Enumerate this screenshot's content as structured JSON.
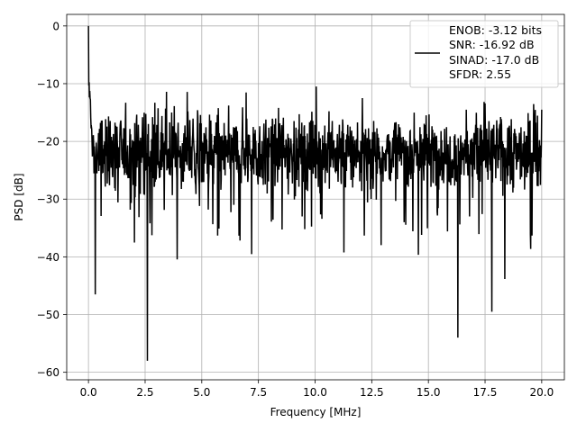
{
  "chart_data": {
    "type": "line",
    "title": "",
    "xlabel": "Frequency [MHz]",
    "ylabel": "PSD [dB]",
    "xlim": [
      -0.96,
      21.0
    ],
    "ylim": [
      -61.3,
      2.0
    ],
    "xticks": [
      0.0,
      2.5,
      5.0,
      7.5,
      10.0,
      12.5,
      15.0,
      17.5,
      20.0
    ],
    "xtick_labels": [
      "0.0",
      "2.5",
      "5.0",
      "7.5",
      "10.0",
      "12.5",
      "15.0",
      "17.5",
      "20.0"
    ],
    "yticks": [
      0,
      -10,
      -20,
      -30,
      -40,
      -50,
      -60
    ],
    "ytick_labels": [
      "0",
      "−10",
      "−20",
      "−30",
      "−40",
      "−50",
      "−60"
    ],
    "grid": true,
    "legend_position": "top-right",
    "series": [
      {
        "name": "ENOB: -3.12 bits\nSNR: -16.92 dB\nSINAD: -17.0 dB\nSFDR: 2.55",
        "legend_lines": [
          "ENOB: -3.12 bits",
          "SNR: -16.92 dB",
          "SINAD: -17.0 dB",
          "SFDR: 2.55"
        ],
        "color": "#000000",
        "x_range": [
          0.0,
          20.0
        ],
        "noise_floor_db": -22.0,
        "peak": {
          "x": 0.0,
          "y": 0.0
        },
        "notable_points": [
          {
            "x": 0.3,
            "y": -46.5
          },
          {
            "x": 2.6,
            "y": -58.0
          },
          {
            "x": 10.05,
            "y": -10.5
          },
          {
            "x": 16.3,
            "y": -54.0
          },
          {
            "x": 17.8,
            "y": -49.5
          },
          {
            "x": 20.0,
            "y": -14.5
          }
        ]
      }
    ]
  }
}
